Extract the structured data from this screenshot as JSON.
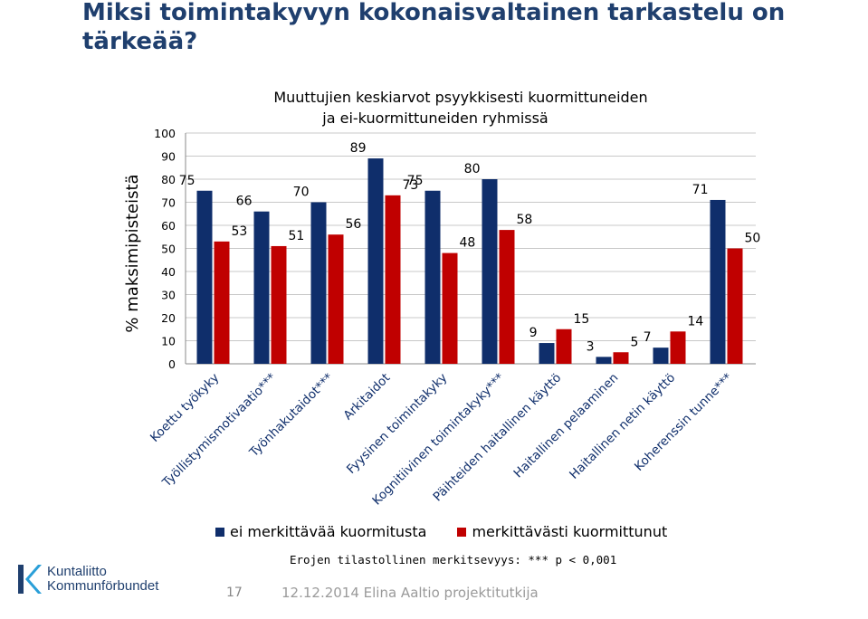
{
  "slide": {
    "title": "Miksi toimintakyvyn kokonaisvaltainen tarkastelu on tärkeää?",
    "note": "Erojen tilastollinen merkitsevyys: *** p < 0,001",
    "page_number": "17",
    "footer": "12.12.2014 Elina Aaltio projektitutkija",
    "logo_line1": "Kuntaliitto",
    "logo_line2": "Kommunförbundet",
    "brand_color": "#1f3f6e"
  },
  "chart_data": {
    "type": "bar",
    "title": "Muuttujien keskiarvot psyykkisesti kuormittuneiden",
    "subtitle": "ja ei-kuormittuneiden ryhmissä",
    "ylabel": "% maksimipisteistä",
    "xlabel": "",
    "ylim": [
      0,
      100
    ],
    "yticks": [
      0,
      10,
      20,
      30,
      40,
      50,
      60,
      70,
      80,
      90,
      100
    ],
    "grid": true,
    "legend_position": "bottom",
    "categories": [
      "Koettu työkyky",
      "Työllistymismotivaatio***",
      "Työnhakutaidot***",
      "Arkitaidot",
      "Fyysinen toimintakyky",
      "Kognitiivinen toimintakyky***",
      "Päihteiden haitallinen käyttö",
      "Haitallinen pelaaminen",
      "Haitallinen netin käyttö",
      "Koherenssin tunne***"
    ],
    "series": [
      {
        "name": "ei merkittävää kuormitusta",
        "color": "#0f2e6b",
        "values": [
          75,
          66,
          70,
          89,
          75,
          80,
          9,
          3,
          7,
          71
        ]
      },
      {
        "name": "merkittävästi kuormittunut",
        "color": "#c00000",
        "values": [
          53,
          51,
          56,
          73,
          48,
          58,
          15,
          5,
          14,
          50
        ]
      }
    ]
  }
}
